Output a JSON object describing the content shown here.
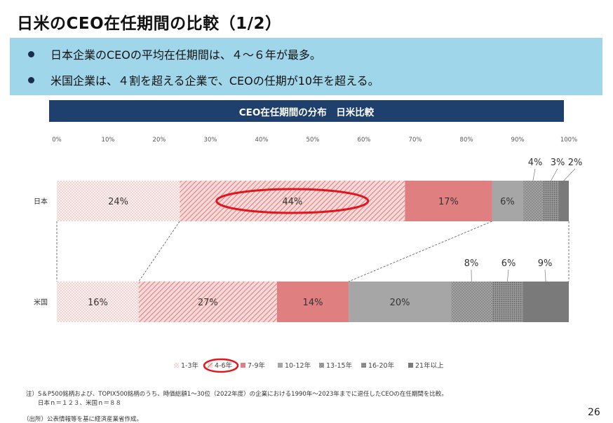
{
  "page": {
    "title": "日米のCEO在任期間の比較（1/2）",
    "bullets": [
      "日本企業のCEOの平均在任期間は、４～６年が最多。",
      "米国企業は、４割を超える企業で、CEOの任期が10年を超える。"
    ],
    "note_line1": "注）S＆P500銘柄および、TOPIX500銘柄のうち、時価総額1～30位（2022年度）の企業における1990年～2023年までに退任したCEOの在任期間を比較。",
    "note_line2": "日本ｎ＝１２３、米国ｎ＝８８",
    "source": "（出所）公表情報等を基に経済産業省作成。",
    "page_number": "26"
  },
  "chart_data": {
    "type": "bar",
    "orientation": "horizontal",
    "stacked": true,
    "title": "CEO在任期間の分布　日米比較",
    "categories": [
      "日本",
      "米国"
    ],
    "x_ticks": [
      "0%",
      "10%",
      "20%",
      "30%",
      "40%",
      "50%",
      "60%",
      "70%",
      "80%",
      "90%",
      "100%"
    ],
    "xlim": [
      0,
      100
    ],
    "series": [
      {
        "name": "1-3年",
        "values": [
          24,
          16
        ],
        "color": "#e07b7b",
        "pattern": "dots"
      },
      {
        "name": "4-6年",
        "values": [
          44,
          27
        ],
        "color": "#e07b7b",
        "pattern": "diagonal"
      },
      {
        "name": "7-9年",
        "values": [
          17,
          14
        ],
        "color": "#e07f7f",
        "pattern": "solid"
      },
      {
        "name": "10-12年",
        "values": [
          6,
          20
        ],
        "color": "#a6a6a6",
        "pattern": "solid"
      },
      {
        "name": "13-15年",
        "values": [
          4,
          8
        ],
        "color": "#8c8c8c",
        "pattern": "dots"
      },
      {
        "name": "16-20年",
        "values": [
          3,
          6
        ],
        "color": "#8c8c8c",
        "pattern": "dense-dots"
      },
      {
        "name": "21年以上",
        "values": [
          2,
          9
        ],
        "color": "#7a7a7a",
        "pattern": "solid"
      }
    ],
    "data_labels": [
      [
        "24%",
        "44%",
        "17%",
        "6%",
        "4%",
        "3%",
        "2%"
      ],
      [
        "16%",
        "27%",
        "14%",
        "20%",
        "8%",
        "6%",
        "9%"
      ]
    ],
    "highlight": {
      "series": "4-6年",
      "color": "#e3141b"
    },
    "legend_position": "bottom",
    "grid": false
  }
}
